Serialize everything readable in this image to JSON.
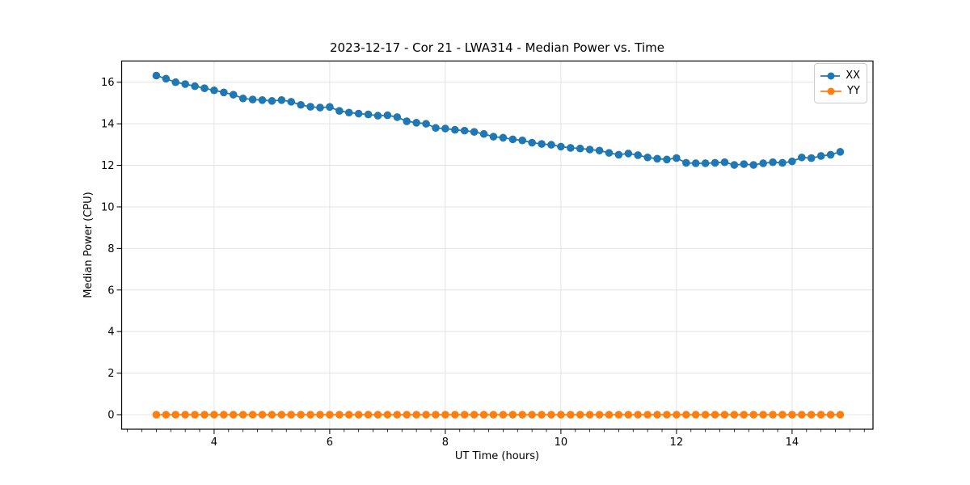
{
  "chart_data": {
    "type": "line",
    "title": "2023-12-17 - Cor 21 - LWA314 - Median Power vs. Time",
    "xlabel": "UT Time (hours)",
    "ylabel": "Median Power (CPU)",
    "xlim": [
      2.4,
      15.4
    ],
    "ylim": [
      -0.7,
      17.02
    ],
    "x_ticks": [
      4,
      6,
      8,
      10,
      12,
      14
    ],
    "y_ticks": [
      0,
      2,
      4,
      6,
      8,
      10,
      12,
      14,
      16
    ],
    "minor_x_step": 0.25,
    "grid": true,
    "grid_color": "#e3e3e3",
    "legend_position": "upper right",
    "x": [
      3.0,
      3.167,
      3.333,
      3.5,
      3.667,
      3.833,
      4.0,
      4.167,
      4.333,
      4.5,
      4.667,
      4.833,
      5.0,
      5.167,
      5.333,
      5.5,
      5.667,
      5.833,
      6.0,
      6.167,
      6.333,
      6.5,
      6.667,
      6.833,
      7.0,
      7.167,
      7.333,
      7.5,
      7.667,
      7.833,
      8.0,
      8.167,
      8.333,
      8.5,
      8.667,
      8.833,
      9.0,
      9.167,
      9.333,
      9.5,
      9.667,
      9.833,
      10.0,
      10.167,
      10.333,
      10.5,
      10.667,
      10.833,
      11.0,
      11.167,
      11.333,
      11.5,
      11.667,
      11.833,
      12.0,
      12.167,
      12.333,
      12.5,
      12.667,
      12.833,
      13.0,
      13.167,
      13.333,
      13.5,
      13.667,
      13.833,
      14.0,
      14.167,
      14.333,
      14.5,
      14.667,
      14.833
    ],
    "series": [
      {
        "name": "XX",
        "color": "#1f77b4",
        "marker": "circle",
        "values": [
          16.32,
          16.17,
          16.0,
          15.91,
          15.81,
          15.71,
          15.61,
          15.51,
          15.4,
          15.22,
          15.17,
          15.14,
          15.1,
          15.14,
          15.06,
          14.91,
          14.82,
          14.78,
          14.81,
          14.62,
          14.54,
          14.49,
          14.45,
          14.39,
          14.41,
          14.32,
          14.12,
          14.05,
          14.0,
          13.8,
          13.77,
          13.71,
          13.67,
          13.61,
          13.51,
          13.38,
          13.33,
          13.25,
          13.2,
          13.09,
          13.03,
          12.99,
          12.9,
          12.84,
          12.81,
          12.76,
          12.71,
          12.6,
          12.51,
          12.57,
          12.49,
          12.38,
          12.32,
          12.28,
          12.35,
          12.12,
          12.1,
          12.1,
          12.12,
          12.15,
          12.02,
          12.06,
          12.02,
          12.1,
          12.15,
          12.12,
          12.19,
          12.38,
          12.35,
          12.45,
          12.51,
          12.65
        ]
      },
      {
        "name": "YY",
        "color": "#ff7f0e",
        "marker": "circle",
        "values": [
          0.0,
          0.0,
          0.0,
          0.0,
          0.0,
          0.0,
          0.0,
          0.0,
          0.0,
          0.0,
          0.0,
          0.0,
          0.0,
          0.0,
          0.0,
          0.0,
          0.0,
          0.0,
          0.0,
          0.0,
          0.0,
          0.0,
          0.0,
          0.0,
          0.0,
          0.0,
          0.0,
          0.0,
          0.0,
          0.0,
          0.0,
          0.0,
          0.0,
          0.0,
          0.0,
          0.0,
          0.0,
          0.0,
          0.0,
          0.0,
          0.0,
          0.0,
          0.0,
          0.0,
          0.0,
          0.0,
          0.0,
          0.0,
          0.0,
          0.0,
          0.0,
          0.0,
          0.0,
          0.0,
          0.0,
          0.0,
          0.0,
          0.0,
          0.0,
          0.0,
          0.0,
          0.0,
          0.0,
          0.0,
          0.0,
          0.0,
          0.0,
          0.0,
          0.0,
          0.0,
          0.0,
          0.0
        ]
      }
    ]
  }
}
